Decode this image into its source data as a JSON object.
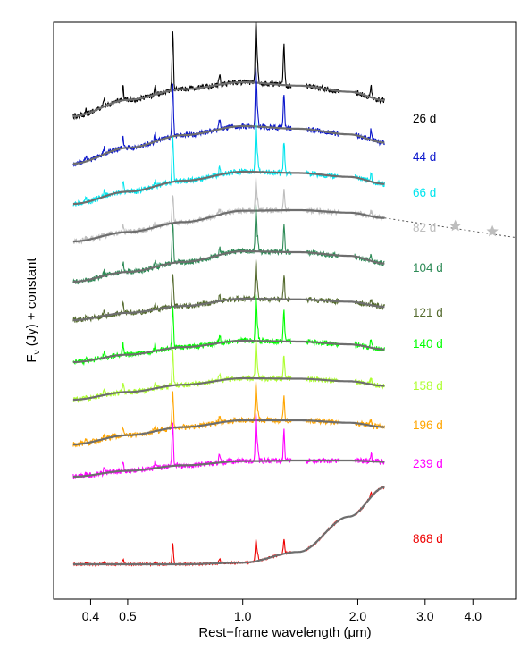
{
  "chart_data": {
    "type": "line",
    "title": "",
    "xlabel": "Rest−frame wavelength (μm)",
    "ylabel": "Fν (Jy) + constant",
    "ylabel_main": "F",
    "ylabel_sub": "ν",
    "ylabel_rest": " (Jy) + constant",
    "x_scale": "log",
    "xlim": [
      0.32,
      5.2
    ],
    "x_ticks": [
      0.4,
      0.5,
      1.0,
      2.0,
      3.0,
      4.0
    ],
    "x_tick_labels": [
      "0.4",
      "0.5",
      "1.0",
      "2.0",
      "3.0",
      "4.0"
    ],
    "y_ticks_shown": false,
    "grid": false,
    "legend": "none",
    "spectral_range": [
      0.36,
      2.35
    ],
    "emission_lines_um": [
      0.389,
      0.434,
      0.486,
      0.59,
      0.656,
      0.87,
      1.083,
      1.094,
      1.282,
      1.876,
      2.166
    ],
    "series": [
      {
        "name": "26 d",
        "color": "#000000",
        "peak_um": 0.62,
        "continuum_norm": [
          0.0,
          0.48,
          0.8,
          1.0,
          0.9,
          0.72,
          0.47
        ]
      },
      {
        "name": "44 d",
        "color": "#0a16cc",
        "peak_um": 0.66,
        "continuum_norm": [
          0.0,
          0.42,
          0.76,
          1.0,
          0.93,
          0.78,
          0.56
        ]
      },
      {
        "name": "66 d",
        "color": "#00e5ee",
        "peak_um": 0.75,
        "continuum_norm": [
          0.0,
          0.38,
          0.72,
          1.0,
          0.96,
          0.84,
          0.62
        ]
      },
      {
        "name": "82 d",
        "color": "#bebebe",
        "peak_um": 0.95,
        "continuum_norm": [
          0.0,
          0.3,
          0.62,
          0.98,
          1.0,
          0.92,
          0.75
        ]
      },
      {
        "name": "104 d",
        "color": "#2e8b57",
        "peak_um": 0.9,
        "continuum_norm": [
          0.0,
          0.32,
          0.65,
          1.0,
          0.97,
          0.85,
          0.6
        ]
      },
      {
        "name": "121 d",
        "color": "#556b2f",
        "peak_um": 0.9,
        "continuum_norm": [
          0.0,
          0.34,
          0.66,
          1.0,
          0.97,
          0.86,
          0.62
        ]
      },
      {
        "name": "140 d",
        "color": "#00ff00",
        "peak_um": 0.9,
        "continuum_norm": [
          0.0,
          0.35,
          0.7,
          1.0,
          0.96,
          0.83,
          0.6
        ]
      },
      {
        "name": "158 d",
        "color": "#adff2f",
        "peak_um": 0.95,
        "continuum_norm": [
          0.0,
          0.36,
          0.7,
          1.0,
          0.98,
          0.86,
          0.65
        ]
      },
      {
        "name": "196 d",
        "color": "#ffa500",
        "peak_um": 1.0,
        "continuum_norm": [
          0.0,
          0.38,
          0.72,
          1.0,
          1.0,
          0.9,
          0.72
        ]
      },
      {
        "name": "239 d",
        "color": "#ff00ff",
        "peak_um": 1.2,
        "continuum_norm": [
          0.0,
          0.36,
          0.7,
          0.96,
          1.0,
          1.0,
          0.92
        ]
      },
      {
        "name": "868 d",
        "color": "#ee0000",
        "peak_um": 2.4,
        "continuum_norm": [
          0.0,
          0.0,
          0.0,
          0.02,
          0.16,
          0.62,
          1.0
        ]
      }
    ],
    "continuum_sample_um": [
      0.36,
      0.5,
      0.7,
      1.0,
      1.4,
      1.9,
      2.35
    ],
    "fit_curve_color": "#6e6e6e",
    "extra_points": {
      "series": "82 d",
      "marker": "star",
      "color": "#bebebe",
      "x_um": [
        3.6,
        4.5
      ],
      "dotted_extension_um": [
        2.35,
        5.2
      ]
    }
  }
}
